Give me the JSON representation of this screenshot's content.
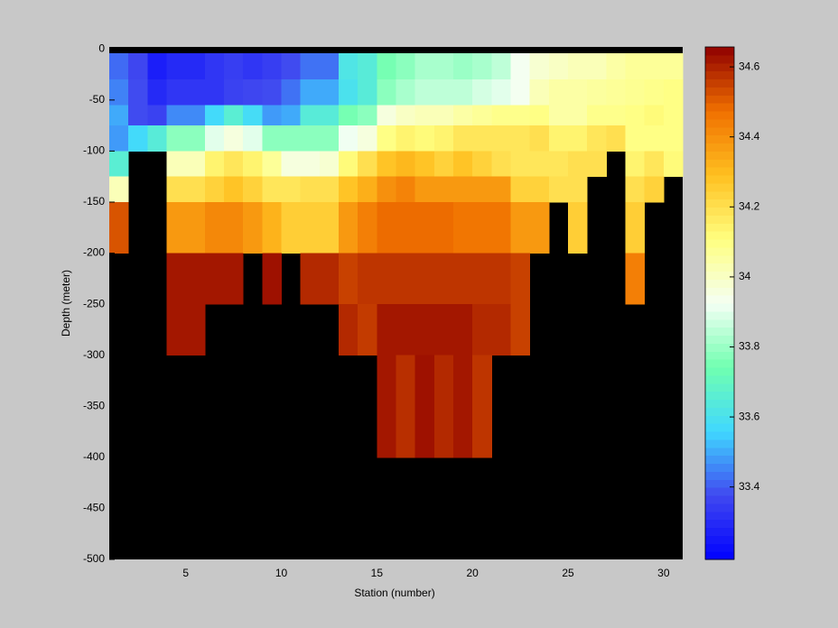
{
  "chart_data": {
    "type": "heatmap",
    "xlabel": "Station (number)",
    "ylabel": "Depth (meter)",
    "x_edges": [
      1,
      2,
      3,
      4,
      5,
      6,
      7,
      8,
      9,
      10,
      11,
      12,
      13,
      14,
      15,
      16,
      17,
      18,
      19,
      20,
      21,
      22,
      23,
      24,
      25,
      26,
      27,
      28,
      29,
      30,
      31
    ],
    "y_edges": [
      -4,
      -30,
      -55,
      -75,
      -100,
      -125,
      -150,
      -200,
      -250,
      -300,
      -400,
      -500
    ],
    "values": [
      [
        33.42,
        33.37,
        33.27,
        33.3,
        33.3,
        33.33,
        33.35,
        33.33,
        33.35,
        33.38,
        33.43,
        33.43,
        33.62,
        33.65,
        33.75,
        33.78,
        33.82,
        33.82,
        33.8,
        33.82,
        33.85,
        33.93,
        33.98,
        34.0,
        34.02,
        34.02,
        34.05,
        34.07,
        34.07,
        34.07
      ],
      [
        33.45,
        33.38,
        33.3,
        33.33,
        33.33,
        33.33,
        33.36,
        33.37,
        33.38,
        33.43,
        33.5,
        33.5,
        33.6,
        33.65,
        33.78,
        33.82,
        33.85,
        33.85,
        33.85,
        33.88,
        33.9,
        33.93,
        34.02,
        34.05,
        34.05,
        34.06,
        34.07,
        34.08,
        34.09,
        34.1
      ],
      [
        33.5,
        33.38,
        33.36,
        33.46,
        33.46,
        33.57,
        33.66,
        33.58,
        33.48,
        33.5,
        33.65,
        33.65,
        33.75,
        33.78,
        33.96,
        34.0,
        34.02,
        34.02,
        34.05,
        34.07,
        34.09,
        34.09,
        34.1,
        34.05,
        34.05,
        34.09,
        34.09,
        34.1,
        34.12,
        34.1
      ],
      [
        33.48,
        33.57,
        33.65,
        33.78,
        33.78,
        33.9,
        33.96,
        33.9,
        33.78,
        33.78,
        33.78,
        33.78,
        33.92,
        33.96,
        34.1,
        34.14,
        34.12,
        34.14,
        34.18,
        34.18,
        34.18,
        34.18,
        34.2,
        34.14,
        34.14,
        34.18,
        34.2,
        34.1,
        34.1,
        34.1
      ],
      [
        33.66,
        null,
        null,
        34.02,
        34.02,
        34.14,
        34.18,
        34.14,
        34.07,
        33.96,
        33.96,
        33.98,
        34.12,
        34.2,
        34.28,
        34.31,
        34.28,
        34.24,
        34.28,
        34.24,
        34.2,
        34.18,
        34.18,
        34.18,
        34.2,
        34.2,
        null,
        34.14,
        34.18,
        34.12
      ],
      [
        34.02,
        null,
        null,
        34.2,
        34.2,
        34.24,
        34.28,
        34.24,
        34.18,
        34.18,
        34.2,
        34.2,
        34.28,
        34.33,
        34.4,
        34.43,
        34.38,
        34.38,
        34.38,
        34.38,
        34.38,
        34.24,
        34.24,
        34.2,
        34.2,
        null,
        null,
        34.2,
        34.24,
        null
      ],
      [
        34.52,
        null,
        null,
        34.38,
        34.38,
        34.42,
        34.42,
        34.38,
        34.32,
        34.25,
        34.25,
        34.25,
        34.38,
        34.44,
        34.48,
        34.48,
        34.48,
        34.48,
        34.46,
        34.46,
        34.46,
        34.38,
        34.38,
        null,
        34.25,
        null,
        null,
        34.25,
        null,
        null
      ],
      [
        null,
        null,
        null,
        34.62,
        34.62,
        34.62,
        34.62,
        null,
        34.63,
        null,
        34.59,
        34.59,
        34.55,
        34.57,
        34.57,
        34.57,
        34.57,
        34.57,
        34.57,
        34.57,
        34.57,
        34.55,
        null,
        null,
        null,
        null,
        null,
        34.44,
        null,
        null
      ],
      [
        null,
        null,
        null,
        34.62,
        34.62,
        null,
        null,
        null,
        null,
        null,
        null,
        null,
        34.59,
        34.56,
        34.62,
        34.62,
        34.62,
        34.62,
        34.62,
        34.59,
        34.59,
        34.55,
        null,
        null,
        null,
        null,
        null,
        null,
        null,
        null
      ],
      [
        null,
        null,
        null,
        null,
        null,
        null,
        null,
        null,
        null,
        null,
        null,
        null,
        null,
        null,
        34.62,
        34.58,
        34.63,
        34.59,
        34.62,
        34.57,
        null,
        null,
        null,
        null,
        null,
        null,
        null,
        null,
        null,
        null
      ],
      [
        null,
        null,
        null,
        null,
        null,
        null,
        null,
        null,
        null,
        null,
        null,
        null,
        null,
        null,
        null,
        null,
        null,
        null,
        null,
        null,
        null,
        null,
        null,
        null,
        null,
        null,
        null,
        null,
        null,
        null
      ]
    ],
    "xlim": [
      1,
      31
    ],
    "ylim": [
      -500,
      2
    ],
    "xticks": [
      5,
      10,
      15,
      20,
      25,
      30
    ],
    "yticks": [
      0,
      -50,
      -100,
      -150,
      -200,
      -250,
      -300,
      -350,
      -400,
      -450,
      -500
    ],
    "clim": [
      33.193,
      34.657
    ],
    "colorbar_ticks": [
      33.4,
      33.6,
      33.8,
      34,
      34.2,
      34.4,
      34.6
    ],
    "colormap": [
      "#0000ff",
      "#4048f0",
      "#40d8ff",
      "#70ffb0",
      "#f4fff4",
      "#ffff80",
      "#ffc020",
      "#f07000",
      "#900000"
    ],
    "background": "#000000",
    "figure_color": "#c8c8c8"
  }
}
